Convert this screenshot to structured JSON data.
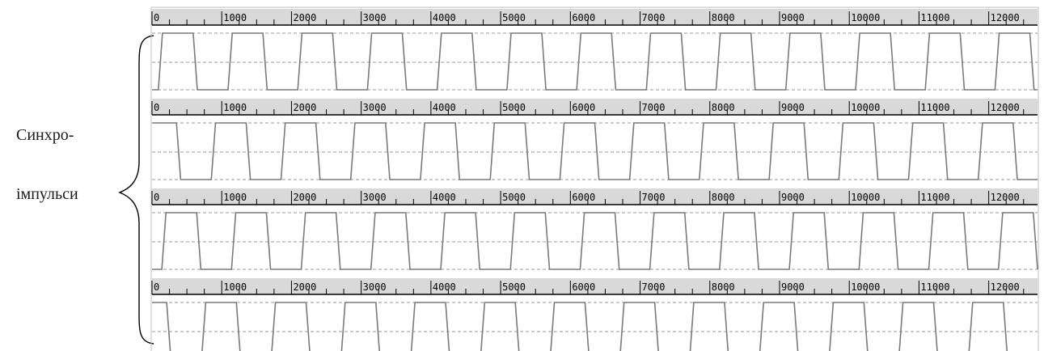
{
  "side_label": {
    "line1": "Синхро-",
    "line2": "імпульси"
  },
  "colors": {
    "ruler_bg": "#d9d9d9",
    "ruler_text": "#000000",
    "waveform": "#7a7a7a",
    "grid_dash": "#9a9a9a",
    "frame": "#bfbfbf",
    "brace": "#000000"
  },
  "chart_data": {
    "type": "line",
    "title": "",
    "xlabel": "",
    "ylabel": "",
    "xlim": [
      0,
      12700
    ],
    "tick_labels": [
      "0",
      "1000",
      "2000",
      "3000",
      "4000",
      "5000",
      "6000",
      "7000",
      "8000",
      "9000",
      "10000",
      "11000",
      "12000"
    ],
    "major_ticks": [
      0,
      1000,
      2000,
      3000,
      4000,
      5000,
      6000,
      7000,
      8000,
      9000,
      10000,
      11000,
      12000
    ],
    "minor_tick_step": 250,
    "levels": [
      "low",
      "high"
    ],
    "series": [
      {
        "period": 1000,
        "duty": 0.5,
        "phase": 120,
        "transition": 60,
        "start_level": "high"
      },
      {
        "period": 1000,
        "duty": 0.5,
        "phase": -120,
        "transition": 60,
        "start_level": "high"
      },
      {
        "period": 1000,
        "duty": 0.5,
        "phase": -330,
        "transition": 60,
        "start_level": "low"
      },
      {
        "period": 1000,
        "duty": 0.5,
        "phase": 240,
        "transition": 60,
        "start_level": "low"
      }
    ]
  }
}
